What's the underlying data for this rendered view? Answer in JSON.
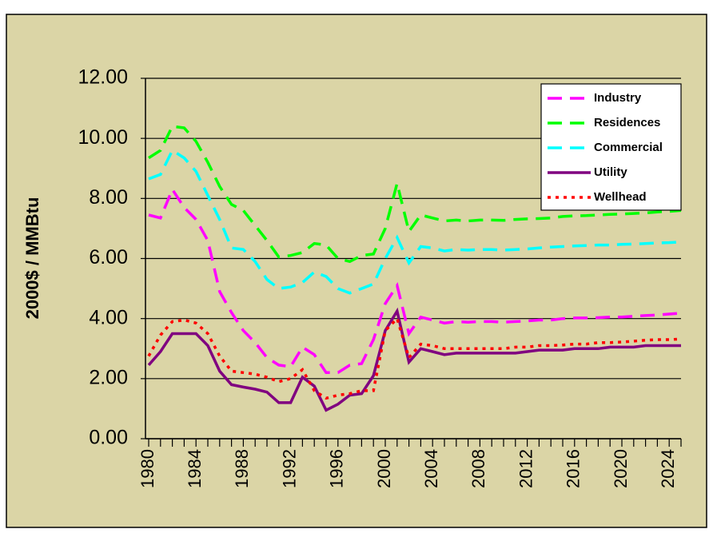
{
  "chart_data": {
    "type": "line",
    "y_label": "2000$ / MMBtu",
    "x": [
      1980,
      1981,
      1982,
      1983,
      1984,
      1985,
      1986,
      1987,
      1988,
      1989,
      1990,
      1991,
      1992,
      1993,
      1994,
      1995,
      1996,
      1997,
      1998,
      1999,
      2000,
      2001,
      2002,
      2003,
      2004,
      2005,
      2006,
      2007,
      2008,
      2009,
      2010,
      2011,
      2012,
      2013,
      2014,
      2015,
      2016,
      2017,
      2018,
      2019,
      2020,
      2021,
      2022,
      2023,
      2024,
      2025
    ],
    "xlim": [
      1980,
      2025
    ],
    "xticks": [
      1980,
      1984,
      1988,
      1992,
      1996,
      2000,
      2004,
      2008,
      2012,
      2016,
      2020,
      2024
    ],
    "ylim": [
      0,
      12
    ],
    "yticks": [
      {
        "value": 0,
        "label": "0.00"
      },
      {
        "value": 2,
        "label": "2.00"
      },
      {
        "value": 4,
        "label": "4.00"
      },
      {
        "value": 6,
        "label": "6.00"
      },
      {
        "value": 8,
        "label": "8.00"
      },
      {
        "value": 10,
        "label": "10.00"
      },
      {
        "value": 12,
        "label": "12.00"
      }
    ],
    "grid": true,
    "legend": "upper right",
    "series": [
      {
        "name": "Industry",
        "color": "#ff00ff",
        "style": "dashed",
        "values": [
          7.45,
          7.35,
          8.3,
          7.7,
          7.3,
          6.6,
          4.9,
          4.2,
          3.6,
          3.2,
          2.7,
          2.45,
          2.4,
          3.05,
          2.8,
          2.2,
          2.2,
          2.45,
          2.5,
          3.3,
          4.5,
          5.1,
          3.5,
          4.05,
          3.95,
          3.85,
          3.9,
          3.88,
          3.9,
          3.9,
          3.88,
          3.9,
          3.92,
          3.95,
          3.95,
          4.0,
          4.02,
          4.02,
          4.03,
          4.05,
          4.05,
          4.08,
          4.1,
          4.12,
          4.15,
          4.18
        ]
      },
      {
        "name": "Residences",
        "color": "#00ff00",
        "style": "dashed",
        "values": [
          9.35,
          9.6,
          10.4,
          10.35,
          9.9,
          9.2,
          8.4,
          7.8,
          7.6,
          7.1,
          6.6,
          6.05,
          6.1,
          6.2,
          6.5,
          6.45,
          6.0,
          5.9,
          6.1,
          6.15,
          7.0,
          8.5,
          6.9,
          7.45,
          7.35,
          7.25,
          7.28,
          7.25,
          7.28,
          7.28,
          7.27,
          7.3,
          7.32,
          7.33,
          7.35,
          7.4,
          7.42,
          7.43,
          7.45,
          7.47,
          7.48,
          7.5,
          7.52,
          7.55,
          7.57,
          7.6
        ]
      },
      {
        "name": "Commercial",
        "color": "#00ffff",
        "style": "dashed",
        "values": [
          8.65,
          8.8,
          9.6,
          9.35,
          8.9,
          8.1,
          7.3,
          6.35,
          6.3,
          5.9,
          5.3,
          5.0,
          5.05,
          5.2,
          5.55,
          5.4,
          5.0,
          4.85,
          5.0,
          5.15,
          6.0,
          6.7,
          5.85,
          6.4,
          6.35,
          6.25,
          6.3,
          6.28,
          6.3,
          6.3,
          6.28,
          6.3,
          6.32,
          6.35,
          6.38,
          6.4,
          6.42,
          6.43,
          6.45,
          6.45,
          6.47,
          6.48,
          6.5,
          6.52,
          6.53,
          6.55
        ]
      },
      {
        "name": "Utility",
        "color": "#800080",
        "style": "solid",
        "values": [
          2.45,
          2.9,
          3.5,
          3.5,
          3.5,
          3.1,
          2.25,
          1.8,
          1.72,
          1.65,
          1.55,
          1.2,
          1.2,
          2.05,
          1.75,
          0.95,
          1.15,
          1.45,
          1.5,
          2.1,
          3.6,
          4.25,
          2.55,
          3.0,
          2.9,
          2.8,
          2.85,
          2.85,
          2.85,
          2.85,
          2.85,
          2.85,
          2.9,
          2.95,
          2.95,
          2.95,
          3.0,
          3.0,
          3.0,
          3.05,
          3.05,
          3.05,
          3.1,
          3.1,
          3.1,
          3.1
        ]
      },
      {
        "name": "Wellhead",
        "color": "#ff0000",
        "style": "dotted",
        "values": [
          2.75,
          3.45,
          3.9,
          3.95,
          3.85,
          3.5,
          2.75,
          2.25,
          2.2,
          2.15,
          2.05,
          1.9,
          2.0,
          2.3,
          1.6,
          1.35,
          1.45,
          1.5,
          1.6,
          1.6,
          3.6,
          4.0,
          2.7,
          3.15,
          3.1,
          3.0,
          3.0,
          3.0,
          3.0,
          3.0,
          3.0,
          3.05,
          3.05,
          3.1,
          3.1,
          3.12,
          3.15,
          3.15,
          3.2,
          3.2,
          3.22,
          3.25,
          3.28,
          3.3,
          3.3,
          3.32
        ]
      }
    ]
  }
}
